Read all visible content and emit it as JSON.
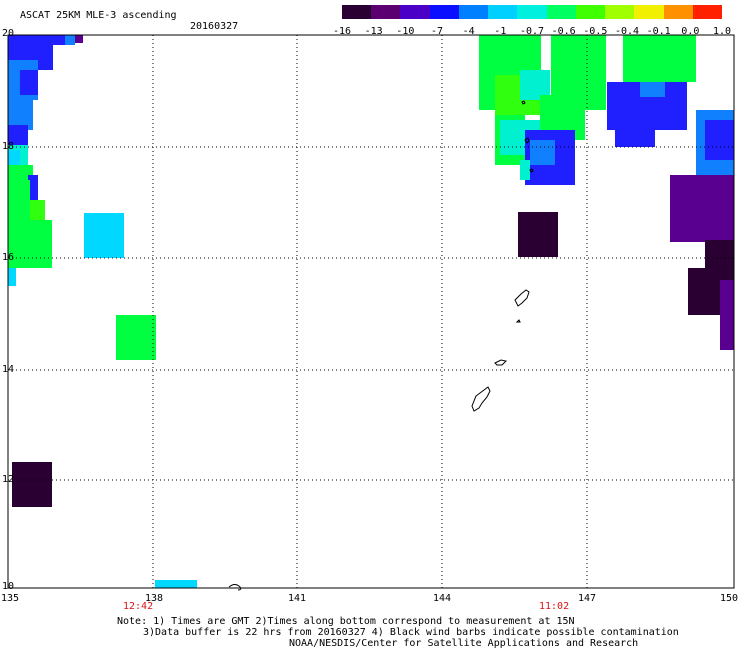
{
  "header": {
    "title": "ASCAT 25KM MLE-3 ascending",
    "date": "20160327"
  },
  "colorbar": {
    "tick_labels": [
      "-16",
      "-13",
      "-10",
      "-7",
      "-4",
      "-1",
      "-0.7",
      "-0.6",
      "-0.5",
      "-0.4",
      "-0.1",
      "0.0",
      "1.0"
    ],
    "colors": [
      "#2a0033",
      "#5a0070",
      "#4b00c8",
      "#0a10ff",
      "#0080ff",
      "#00d0ff",
      "#00f0e0",
      "#00ff60",
      "#40ff00",
      "#a0ff00",
      "#f0f000",
      "#ff9000",
      "#ff2000"
    ]
  },
  "map": {
    "lat_labels": [
      "20",
      "18",
      "16",
      "14",
      "12",
      "10"
    ],
    "lon_labels": [
      "135",
      "138",
      "141",
      "144",
      "147",
      "150"
    ],
    "time_labels": [
      "12:42",
      "11:02"
    ],
    "time_color": "#d11111",
    "swath_colors": {
      "dark_purple": "#2a0033",
      "purple": "#5a0090",
      "blue": "#2020ff",
      "sky": "#1080ff",
      "cyan": "#00d8ff",
      "aqua": "#00f0d0",
      "green": "#00ff40",
      "lime": "#30ff10"
    }
  },
  "notes": {
    "line1": "Note: 1) Times are GMT 2)Times along bottom correspond to measurement at 15N",
    "line2": "3)Data buffer is 22 hrs from 20160327 4) Black wind barbs indicate possible contamination",
    "line3": "NOAA/NESDIS/Center for Satellite Applications and Research"
  }
}
